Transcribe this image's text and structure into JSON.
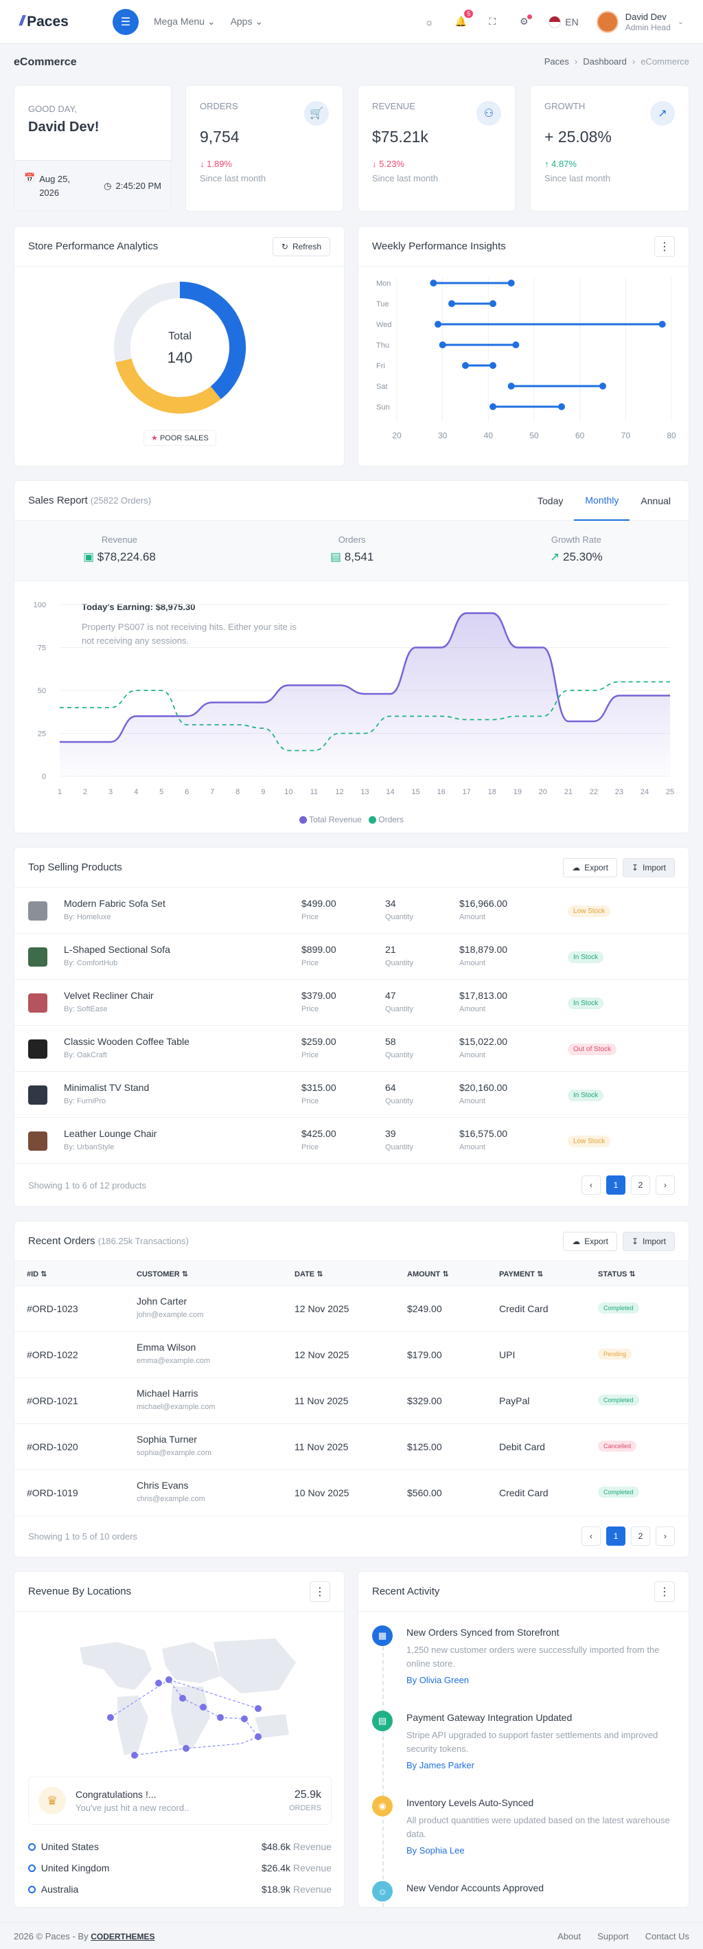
{
  "topbar": {
    "brand": "Paces",
    "mega_menu": "Mega Menu",
    "apps": "Apps",
    "notif_count": "5",
    "lang": "EN",
    "user_name": "David Dev",
    "user_role": "Admin Head"
  },
  "page": {
    "title": "eCommerce",
    "crumbs": [
      "Paces",
      "Dashboard",
      "eCommerce"
    ]
  },
  "greet": {
    "hello": "GOOD DAY,",
    "name": "David Dev!",
    "date": "Aug 25, 2026",
    "time": "2:45:20 PM"
  },
  "stats": [
    {
      "label": "ORDERS",
      "value": "9,754",
      "change": "1.89%",
      "dir": "down",
      "sub": "Since last month",
      "icon": "cart-icon"
    },
    {
      "label": "REVENUE",
      "value": "$75.21k",
      "change": "5.23%",
      "dir": "down",
      "sub": "Since last month",
      "icon": "piggy-icon"
    },
    {
      "label": "GROWTH",
      "value": "+ 25.08%",
      "change": "4.87%",
      "dir": "up",
      "sub": "Since last month",
      "icon": "trend-icon"
    }
  ],
  "perf": {
    "title": "Store Performance Analytics",
    "refresh": "Refresh",
    "total_label": "Total",
    "total": "140",
    "legend": "POOR SALES"
  },
  "weekly": {
    "title": "Weekly Performance Insights"
  },
  "sales": {
    "title": "Sales Report",
    "sub": "(25822 Orders)",
    "tabs": [
      "Today",
      "Monthly",
      "Annual"
    ],
    "kpis": [
      {
        "label": "Revenue",
        "value": "$78,224.68"
      },
      {
        "label": "Orders",
        "value": "8,541"
      },
      {
        "label": "Growth Rate",
        "value": "25.30%"
      }
    ],
    "earning_title": "Today's Earning: $8,975.30",
    "earning_text": "Property PS007 is not receiving hits. Either your site is not receiving any sessions.",
    "legend": [
      "Total Revenue",
      "Orders"
    ]
  },
  "chart_data": [
    {
      "type": "donut",
      "total": 140,
      "values": [
        55,
        45,
        40
      ],
      "colors": [
        "#1f6fe0",
        "#f7bd44",
        "#e9edf3"
      ],
      "legend": [
        "POOR SALES"
      ]
    },
    {
      "type": "dumbbell",
      "categories": [
        "Mon",
        "Tue",
        "Wed",
        "Thu",
        "Fri",
        "Sat",
        "Sun"
      ],
      "ranges": [
        [
          28,
          45
        ],
        [
          32,
          41
        ],
        [
          29,
          78
        ],
        [
          30,
          46
        ],
        [
          35,
          41
        ],
        [
          45,
          65
        ],
        [
          41,
          56
        ]
      ],
      "xlim": [
        20,
        80
      ],
      "xticks": [
        20,
        30,
        40,
        50,
        60,
        70,
        80
      ]
    },
    {
      "type": "line",
      "x": [
        1,
        2,
        3,
        4,
        5,
        6,
        7,
        8,
        9,
        10,
        11,
        12,
        13,
        14,
        15,
        16,
        17,
        18,
        19,
        20,
        21,
        22,
        23,
        24,
        25
      ],
      "ylim": [
        0,
        100
      ],
      "yticks": [
        0,
        25,
        50,
        75,
        100
      ],
      "series": [
        {
          "name": "Total Revenue",
          "color": "#7463d6",
          "values": [
            20,
            20,
            20,
            35,
            35,
            35,
            43,
            43,
            43,
            53,
            53,
            53,
            48,
            48,
            75,
            75,
            95,
            95,
            75,
            75,
            32,
            32,
            47,
            47,
            47
          ]
        },
        {
          "name": "Orders",
          "color": "#1fb286",
          "values": [
            40,
            40,
            40,
            50,
            50,
            30,
            30,
            30,
            28,
            15,
            15,
            25,
            25,
            35,
            35,
            35,
            33,
            33,
            35,
            35,
            50,
            50,
            55,
            55,
            55
          ]
        }
      ]
    }
  ],
  "products": {
    "title": "Top Selling Products",
    "export": "Export",
    "import": "Import",
    "price_lbl": "Price",
    "qty_lbl": "Quantity",
    "amt_lbl": "Amount",
    "rows": [
      {
        "name": "Modern Fabric Sofa Set",
        "by": "By: Homeluxe",
        "price": "$499.00",
        "qty": "34",
        "amount": "$16,966.00",
        "status": "Low Stock",
        "cls": "low",
        "thumb": "#8a8f98"
      },
      {
        "name": "L-Shaped Sectional Sofa",
        "by": "By: ComfortHub",
        "price": "$899.00",
        "qty": "21",
        "amount": "$18,879.00",
        "status": "In Stock",
        "cls": "in",
        "thumb": "#3e6b4a"
      },
      {
        "name": "Velvet Recliner Chair",
        "by": "By: SoftEase",
        "price": "$379.00",
        "qty": "47",
        "amount": "$17,813.00",
        "status": "In Stock",
        "cls": "in",
        "thumb": "#b5545c"
      },
      {
        "name": "Classic Wooden Coffee Table",
        "by": "By: OakCraft",
        "price": "$259.00",
        "qty": "58",
        "amount": "$15,022.00",
        "status": "Out of Stock",
        "cls": "out",
        "thumb": "#222"
      },
      {
        "name": "Minimalist TV Stand",
        "by": "By: FurniPro",
        "price": "$315.00",
        "qty": "64",
        "amount": "$20,160.00",
        "status": "In Stock",
        "cls": "in",
        "thumb": "#2f3844"
      },
      {
        "name": "Leather Lounge Chair",
        "by": "By: UrbanStyle",
        "price": "$425.00",
        "qty": "39",
        "amount": "$16,575.00",
        "status": "Low Stock",
        "cls": "low",
        "thumb": "#7a4b38"
      }
    ],
    "showing": "Showing 1 to 6 of 12 products"
  },
  "orders": {
    "title": "Recent Orders",
    "sub": "(186.25k Transactions)",
    "export": "Export",
    "import": "Import",
    "headers": [
      "#ID",
      "CUSTOMER",
      "DATE",
      "AMOUNT",
      "PAYMENT",
      "STATUS"
    ],
    "rows": [
      {
        "id": "#ORD-1023",
        "name": "John Carter",
        "email": "john@example.com",
        "date": "12 Nov 2025",
        "amount": "$249.00",
        "pay": "Credit Card",
        "status": "Completed",
        "cls": "in"
      },
      {
        "id": "#ORD-1022",
        "name": "Emma Wilson",
        "email": "emma@example.com",
        "date": "12 Nov 2025",
        "amount": "$179.00",
        "pay": "UPI",
        "status": "Pending",
        "cls": "pend"
      },
      {
        "id": "#ORD-1021",
        "name": "Michael Harris",
        "email": "michael@example.com",
        "date": "11 Nov 2025",
        "amount": "$329.00",
        "pay": "PayPal",
        "status": "Completed",
        "cls": "in"
      },
      {
        "id": "#ORD-1020",
        "name": "Sophia Turner",
        "email": "sophia@example.com",
        "date": "11 Nov 2025",
        "amount": "$125.00",
        "pay": "Debit Card",
        "status": "Cancelled",
        "cls": "out"
      },
      {
        "id": "#ORD-1019",
        "name": "Chris Evans",
        "email": "chris@example.com",
        "date": "10 Nov 2025",
        "amount": "$560.00",
        "pay": "Credit Card",
        "status": "Completed",
        "cls": "in"
      }
    ],
    "showing": "Showing 1 to 5 of 10 orders"
  },
  "pager": {
    "pages": [
      "1",
      "2"
    ]
  },
  "locations": {
    "title": "Revenue By Locations",
    "congrats": "Congratulations !...",
    "congrats_sub": "You've just hit a new record..",
    "congrats_val": "25.9k",
    "congrats_unit": "ORDERS",
    "rows": [
      {
        "name": "United States",
        "val": "$48.6k",
        "unit": "Revenue"
      },
      {
        "name": "United Kingdom",
        "val": "$26.4k",
        "unit": "Revenue"
      },
      {
        "name": "Australia",
        "val": "$18.9k",
        "unit": "Revenue"
      }
    ]
  },
  "activity": {
    "title": "Recent Activity",
    "items": [
      {
        "title": "New Orders Synced from Storefront",
        "text": "1,250 new customer orders were successfully imported from the online store.",
        "by": "By Olivia Green",
        "color": "#1f6fe0"
      },
      {
        "title": "Payment Gateway Integration Updated",
        "text": "Stripe API upgraded to support faster settlements and improved security tokens.",
        "by": "By James Parker",
        "color": "#1fb286"
      },
      {
        "title": "Inventory Levels Auto-Synced",
        "text": "All product quantities were updated based on the latest warehouse data.",
        "by": "By Sophia Lee",
        "color": "#f7bd44"
      },
      {
        "title": "New Vendor Accounts Approved",
        "text": "",
        "by": "",
        "color": "#5bc0de"
      }
    ]
  },
  "footer": {
    "copy": "2026 © Paces - By",
    "brand": "CODERTHEMES",
    "links": [
      "About",
      "Support",
      "Contact Us"
    ]
  }
}
